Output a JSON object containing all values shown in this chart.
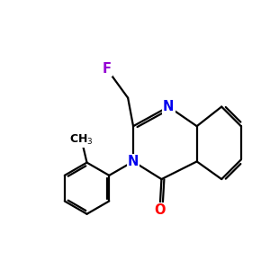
{
  "background": "#ffffff",
  "bond_color": "#000000",
  "N_color": "#0000ee",
  "O_color": "#ff0000",
  "F_color": "#9400d3",
  "bond_width": 1.6,
  "figsize": [
    3.0,
    3.0
  ],
  "dpi": 100,
  "xlim": [
    0,
    10
  ],
  "ylim": [
    0,
    10
  ]
}
